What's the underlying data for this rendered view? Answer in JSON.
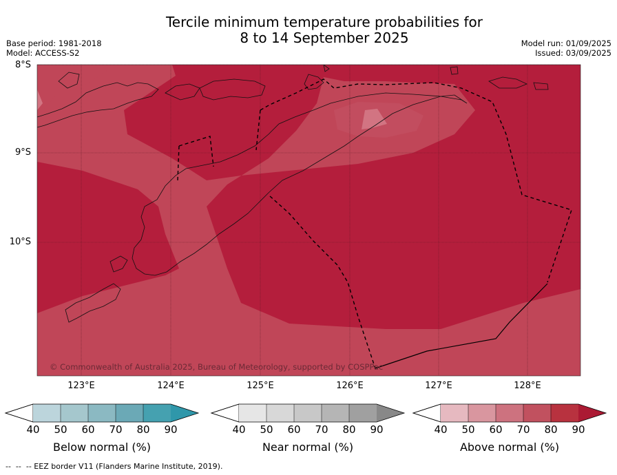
{
  "title": {
    "line1": "Tercile minimum temperature probabilities for",
    "line2": "8 to 14 September 2025"
  },
  "meta_left": {
    "base_period": "Base period: 1981-2018",
    "model": "Model: ACCESS-S2"
  },
  "meta_right": {
    "model_run": "Model run: 01/09/2025",
    "issued": "Issued: 03/09/2025"
  },
  "map": {
    "lat_labels": [
      "8°S",
      "9°S",
      "10°S"
    ],
    "lon_labels": [
      "123°E",
      "124°E",
      "125°E",
      "126°E",
      "127°E",
      "128°E"
    ],
    "copyright": "© Commonwealth of Australia 2025, Bureau of Meteorology, supported by COSPPac",
    "colors": {
      "above_80_90": "#b41e3c",
      "above_70_80": "#c04658",
      "above_60_70": "#d27482"
    }
  },
  "colorbars": [
    {
      "label": "Below normal (%)",
      "ticks": [
        "40",
        "50",
        "60",
        "70",
        "80",
        "90"
      ],
      "colors": [
        "#bcd5dc",
        "#a5c7cd",
        "#8bb9c2",
        "#6ba9b6",
        "#45a1b0",
        "#2f97aa"
      ]
    },
    {
      "label": "Near normal (%)",
      "ticks": [
        "40",
        "50",
        "60",
        "70",
        "80",
        "90"
      ],
      "colors": [
        "#e6e6e6",
        "#d8d8d8",
        "#c8c8c8",
        "#b5b5b5",
        "#a0a0a0",
        "#888888"
      ]
    },
    {
      "label": "Above normal (%)",
      "ticks": [
        "40",
        "50",
        "60",
        "70",
        "80",
        "90"
      ],
      "colors": [
        "#e6b9c0",
        "#d9969f",
        "#cd727f",
        "#c1515f",
        "#b8323f",
        "#ab1a33"
      ]
    }
  ],
  "footer": "--  --  -- EEZ border V11 (Flanders Marine Institute, 2019)."
}
